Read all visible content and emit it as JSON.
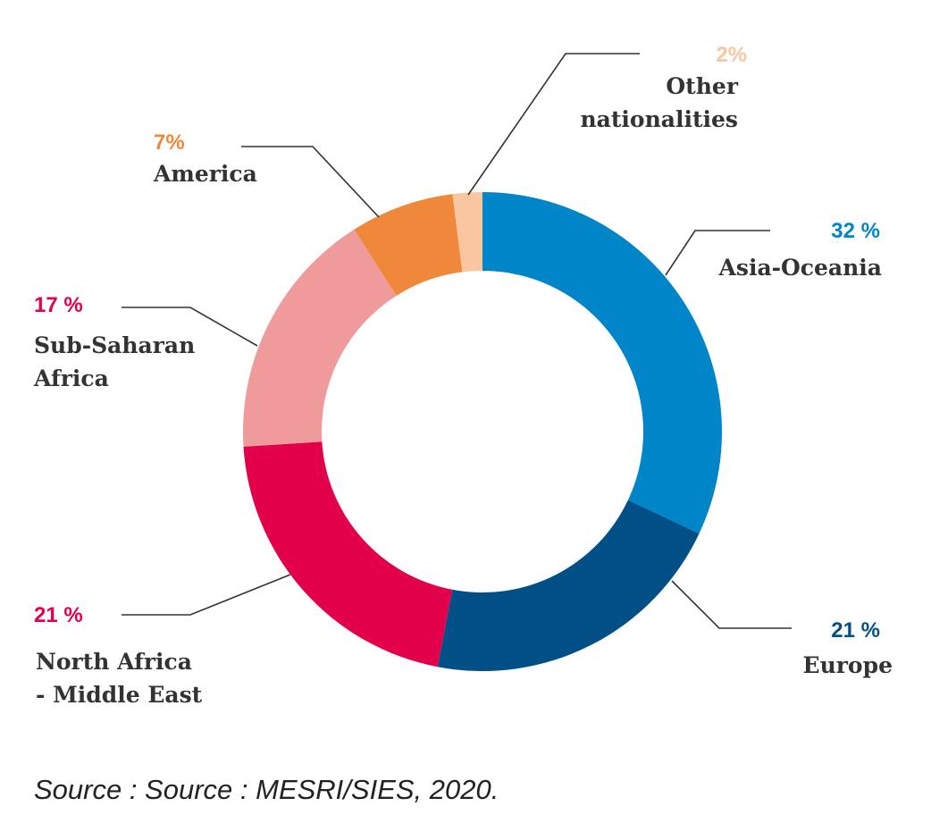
{
  "chart_data": {
    "type": "pie",
    "title": "",
    "slices": [
      {
        "name": "Asia-Oceania",
        "value": 32,
        "value_label": "32 %",
        "color": "#0085c8",
        "label_color": "#0085c8"
      },
      {
        "name": "Europe",
        "value": 21,
        "value_label": "21 %",
        "color": "#005087",
        "label_color": "#005087"
      },
      {
        "name": "North Africa - Middle East",
        "name_lines": [
          "North Africa",
          "- Middle East"
        ],
        "value": 21,
        "value_label": "21 %",
        "color": "#e2004a",
        "label_color": "#e2004a"
      },
      {
        "name": "Sub-Saharan Africa",
        "name_lines": [
          "Sub-Saharan",
          "Africa"
        ],
        "value": 17,
        "value_label": "17 %",
        "color": "#f09b9b",
        "label_color": "#e2004a"
      },
      {
        "name": "America",
        "value": 7,
        "value_label": "7%",
        "color": "#f0883c",
        "label_color": "#f0883c"
      },
      {
        "name": "Other nationalities",
        "name_lines": [
          "Other",
          "nationalities"
        ],
        "value": 2,
        "value_label": "2%",
        "color": "#f8c6a0",
        "label_color": "#f8c6a0"
      }
    ]
  },
  "source": "Source : Source : MESRI/SIES, 2020."
}
